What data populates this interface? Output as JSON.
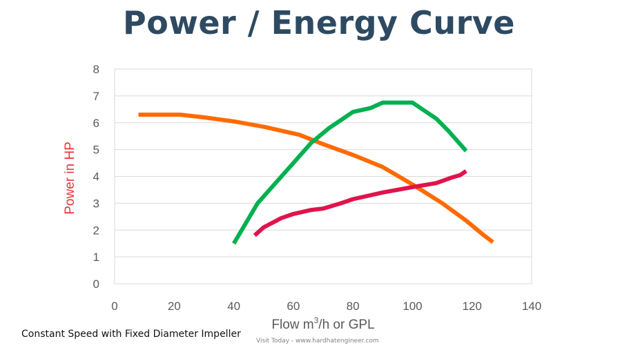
{
  "chart_data": {
    "type": "line",
    "title": "Power / Energy Curve",
    "ylabel": "Power in HP",
    "xlabel_prefix": "Flow m",
    "xlabel_sup": "3",
    "xlabel_suffix": "/h or GPL",
    "xlim": [
      0,
      140
    ],
    "ylim": [
      0,
      8
    ],
    "xticks": [
      0,
      20,
      40,
      60,
      80,
      100,
      120,
      140
    ],
    "yticks": [
      0,
      1,
      2,
      3,
      4,
      5,
      6,
      7,
      8
    ],
    "grid": "horizontal",
    "legend": "none",
    "series": [
      {
        "color": "#ff6a00",
        "x": [
          8,
          22,
          30,
          40,
          50,
          62,
          70,
          80,
          90,
          100,
          110,
          118,
          124,
          127
        ],
        "y": [
          6.3,
          6.3,
          6.2,
          6.05,
          5.85,
          5.55,
          5.2,
          4.8,
          4.35,
          3.7,
          3.0,
          2.35,
          1.8,
          1.55
        ]
      },
      {
        "color": "#00b050",
        "x": [
          40,
          48,
          56,
          60,
          66,
          72,
          76,
          80,
          86,
          90,
          95,
          100,
          104,
          108,
          112,
          118
        ],
        "y": [
          1.5,
          3.0,
          4.0,
          4.5,
          5.25,
          5.8,
          6.1,
          6.4,
          6.55,
          6.75,
          6.75,
          6.75,
          6.45,
          6.15,
          5.7,
          4.95
        ]
      },
      {
        "color": "#e0144c",
        "x": [
          47,
          50,
          56,
          60,
          66,
          70,
          76,
          80,
          90,
          100,
          108,
          113,
          116,
          118
        ],
        "y": [
          1.8,
          2.1,
          2.45,
          2.6,
          2.75,
          2.8,
          3.0,
          3.15,
          3.4,
          3.6,
          3.75,
          3.95,
          4.05,
          4.2
        ]
      }
    ],
    "colors": {
      "title": "#2e4a62",
      "ylabel": "#e8333a",
      "axis": "#595959",
      "grid": "#d9d9d9"
    }
  },
  "footnote": "Constant Speed with Fixed Diameter Impeller",
  "watermark": "Visit Today - www.hardhatengineer.com"
}
